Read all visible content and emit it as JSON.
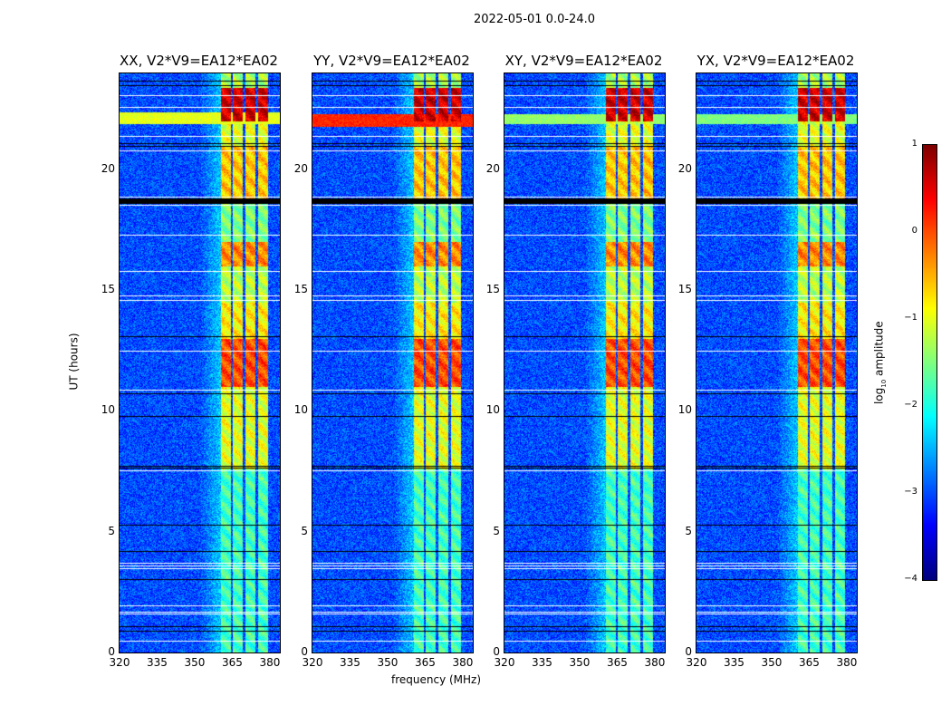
{
  "chart_data": {
    "type": "heatmap",
    "title": "2022-05-01 0.0-24.0",
    "xlabel": "frequency (MHz)",
    "ylabel": "UT (hours)",
    "colorbar_label": "log10 amplitude",
    "colorbar_label_parts": {
      "base": "log",
      "sub": "10",
      "rest": " amplitude"
    },
    "colormap": "jet",
    "color_range": [
      -4,
      1
    ],
    "colorbar_ticks": [
      "1",
      "0",
      "−1",
      "−2",
      "−3",
      "−4"
    ],
    "colorbar_tick_values": [
      1,
      0,
      -1,
      -2,
      -3,
      -4
    ],
    "xlim": [
      320,
      384
    ],
    "ylim": [
      0,
      24
    ],
    "x_ticks": [
      320,
      335,
      350,
      365,
      380
    ],
    "x_tick_labels": [
      "320",
      "335",
      "350",
      "365",
      "380"
    ],
    "y_ticks": [
      0,
      5,
      10,
      15,
      20
    ],
    "y_tick_labels": [
      "0",
      "5",
      "10",
      "15",
      "20"
    ],
    "background_level": -3,
    "rfi_channel_blocks_mhz": [
      [
        360.5,
        364.3
      ],
      [
        365.2,
        369.3
      ],
      [
        370.2,
        374.3
      ],
      [
        375.2,
        379.3
      ]
    ],
    "time_segments": [
      {
        "start": 0,
        "end": 7.6,
        "rfi_level": -1.8
      },
      {
        "start": 7.6,
        "end": 11,
        "rfi_level": -1.0
      },
      {
        "start": 11,
        "end": 13,
        "rfi_level": 0.0
      },
      {
        "start": 13,
        "end": 14.5,
        "rfi_level": -0.8
      },
      {
        "start": 14.5,
        "end": 16,
        "rfi_level": -1.2
      },
      {
        "start": 16,
        "end": 17,
        "rfi_level": -0.3
      },
      {
        "start": 17,
        "end": 18.6,
        "rfi_level": -1.5
      },
      {
        "start": 18.8,
        "end": 21,
        "rfi_level": -0.6
      },
      {
        "start": 21,
        "end": 22,
        "rfi_level": -1.0
      },
      {
        "start": 22,
        "end": 23.4,
        "rfi_level": 0.6
      },
      {
        "start": 23.4,
        "end": 24,
        "rfi_level": -1.3
      }
    ],
    "flagged_rows_hours": [
      0.5,
      1.6,
      1.7,
      1.95,
      3.5,
      3.6,
      3.7,
      7.55,
      10.9,
      12.5,
      14.6,
      14.8,
      15.8,
      17.3,
      18.55,
      18.9,
      20.8,
      21.4,
      22.6,
      23.1
    ],
    "dead_rows_hours": [
      0.9,
      1.1,
      3.05,
      4.2,
      5.3,
      7.65,
      7.75,
      9.8,
      10.75,
      13.1,
      18.7,
      18.8,
      21.0,
      21.1,
      23.5,
      23.7
    ],
    "panels": [
      {
        "title": "XX, V2*V9=EA12*EA02",
        "broadband_streak": {
          "start": 21.9,
          "end": 22.4,
          "level": -1.0
        }
      },
      {
        "title": "YY, V2*V9=EA12*EA02",
        "broadband_streak": {
          "start": 21.8,
          "end": 22.3,
          "level": 0.2
        }
      },
      {
        "title": "XY, V2*V9=EA12*EA02",
        "broadband_streak": {
          "start": 21.9,
          "end": 22.3,
          "level": -1.4
        }
      },
      {
        "title": "YX, V2*V9=EA12*EA02",
        "broadband_streak": {
          "start": 21.9,
          "end": 22.3,
          "level": -1.5
        }
      }
    ]
  }
}
